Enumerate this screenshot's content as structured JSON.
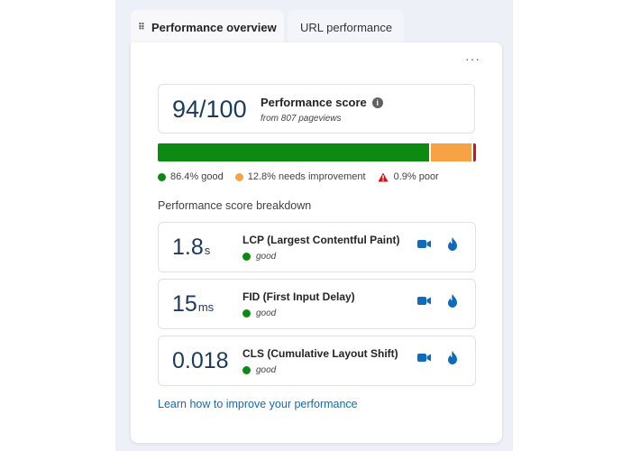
{
  "tabs": [
    {
      "label": "Performance overview",
      "active": true
    },
    {
      "label": "URL performance",
      "active": false
    }
  ],
  "more_label": "···",
  "score": {
    "value": "94/100",
    "label": "Performance score",
    "info_glyph": "i",
    "subtext": "from 807 pageviews"
  },
  "distribution": {
    "good_fraction": 0.864,
    "needs_improvement_fraction": 0.128,
    "poor_fraction": 0.009,
    "legend": {
      "good": "86.4% good",
      "needs_improvement": "12.8% needs improvement",
      "poor": "0.9% poor"
    },
    "colors": {
      "good": "#0d8a12",
      "needs_improvement": "#f7a245",
      "poor": "#d3121d"
    }
  },
  "breakdown": {
    "title": "Performance score breakdown",
    "metrics": [
      {
        "value": "1.8",
        "unit": "s",
        "name": "LCP (Largest Contentful Paint)",
        "status": "good"
      },
      {
        "value": "15",
        "unit": "ms",
        "name": "FID (First Input Delay)",
        "status": "good"
      },
      {
        "value": "0.018",
        "unit": "",
        "name": "CLS (Cumulative Layout Shift)",
        "status": "good"
      }
    ]
  },
  "learn_link": "Learn how to improve your performance",
  "icons": {
    "tab_grip": "drag-grip-icon",
    "more": "more-options-icon",
    "info": "info-icon",
    "metric_action_1": "video-camera-icon",
    "metric_action_2": "flame-icon"
  },
  "accent_colors": {
    "link": "#0f6cbd",
    "score": "#1b3a5c"
  }
}
